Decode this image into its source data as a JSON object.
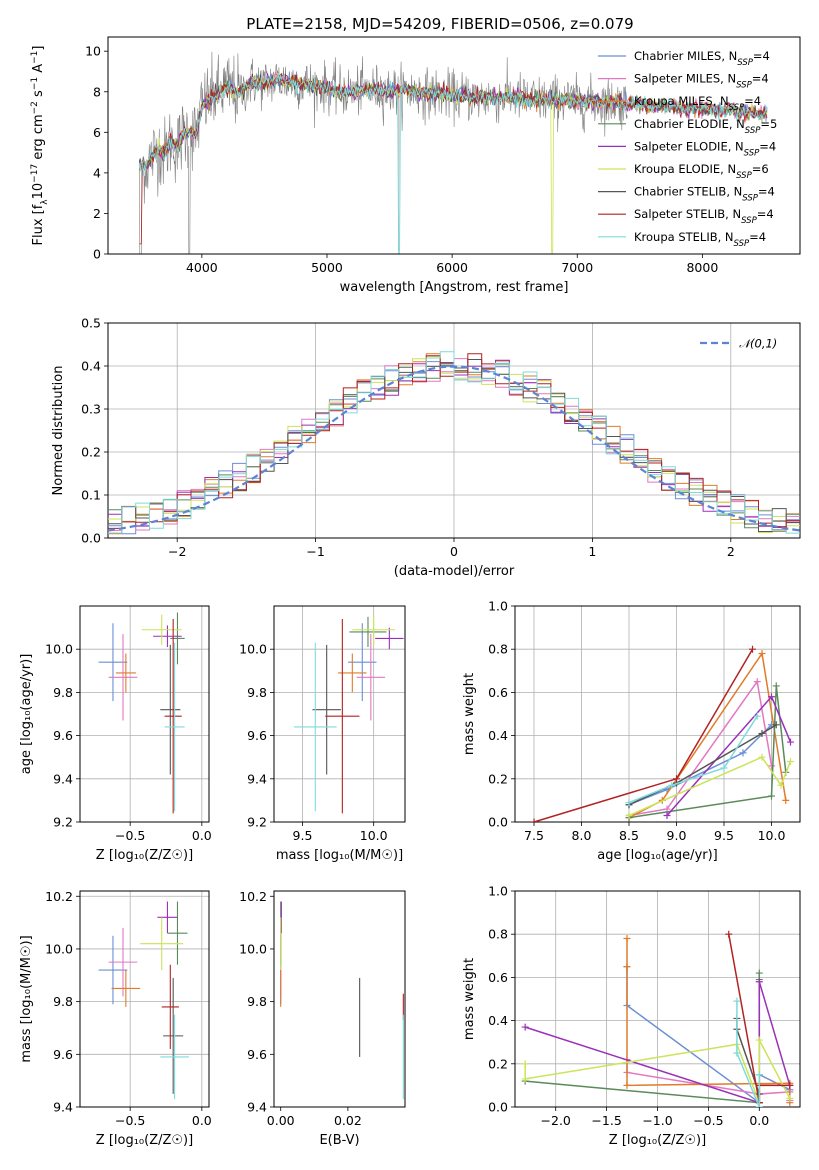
{
  "figure": {
    "title": "PLATE=2158, MJD=54209, FIBERID=0506, z=0.079"
  },
  "colors": {
    "data": "#7f7f7f",
    "Chabrier MILES": "#6b8ed6",
    "Salpeter MILES": "#e377c2",
    "Kroupa MILES": "#e07b2a",
    "Chabrier ELODIE": "#5a8a5a",
    "Salpeter ELODIE": "#9b30b8",
    "Kroupa ELODIE": "#cce35a",
    "Chabrier STELIB": "#555555",
    "Salpeter STELIB": "#b22222",
    "Kroupa STELIB": "#7fdada",
    "gaussian": "#5b84d4",
    "grid": "#b0b0b0"
  },
  "chart_data": [
    {
      "id": "spectrum",
      "type": "line",
      "title": "PLATE=2158, MJD=54209, FIBERID=0506, z=0.079",
      "xlabel": "wavelength [Angstrom, rest frame]",
      "ylabel_parts": [
        "Flux [f",
        "λ",
        "10",
        "−17",
        " erg cm",
        "−2",
        " s",
        "−1",
        " A",
        "−1",
        "]"
      ],
      "xlim": [
        3250,
        8780
      ],
      "ylim": [
        0,
        10.7
      ],
      "xticks": [
        4000,
        5000,
        6000,
        7000,
        8000
      ],
      "yticks": [
        0,
        2,
        4,
        6,
        8,
        10
      ],
      "grid": false,
      "legend_position": "top-right",
      "legend": [
        {
          "name": "Chabrier MILES",
          "nssp": "4"
        },
        {
          "name": "Salpeter MILES",
          "nssp": "4"
        },
        {
          "name": "Kroupa MILES",
          "nssp": "4"
        },
        {
          "name": "Chabrier ELODIE",
          "nssp": "5"
        },
        {
          "name": "Salpeter ELODIE",
          "nssp": "4"
        },
        {
          "name": "Kroupa ELODIE",
          "nssp": "6"
        },
        {
          "name": "Chabrier STELIB",
          "nssp": "4"
        },
        {
          "name": "Salpeter STELIB",
          "nssp": "4"
        },
        {
          "name": "Kroupa STELIB",
          "nssp": "4"
        }
      ],
      "legend_nssp_label": "N",
      "legend_nssp_sub": "SSP",
      "continuum": {
        "x": [
          3500,
          3550,
          3600,
          3650,
          3700,
          3750,
          3800,
          3850,
          3900,
          3950,
          4000,
          4050,
          4100,
          4200,
          4300,
          4400,
          4500,
          4600,
          4700,
          4800,
          4900,
          5000,
          5100,
          5200,
          5300,
          5400,
          5500,
          5600,
          5700,
          5800,
          5900,
          6000,
          6100,
          6200,
          6300,
          6400,
          6500,
          6600,
          6700,
          6800,
          6900,
          7000,
          7100,
          7200,
          7300,
          7400,
          7500,
          7600,
          7700,
          7800,
          7900,
          8000,
          8100,
          8200,
          8300,
          8400,
          8500
        ],
        "y": [
          4.5,
          4.3,
          4.8,
          5.2,
          4.9,
          5.6,
          5.2,
          5.9,
          6.1,
          5.8,
          7.3,
          7.6,
          7.8,
          8.2,
          7.9,
          8.5,
          8.4,
          8.6,
          8.5,
          8.4,
          8.3,
          8.2,
          8.0,
          8.0,
          8.1,
          8.1,
          8.0,
          8.1,
          8.0,
          7.9,
          7.9,
          7.8,
          7.8,
          7.7,
          7.7,
          7.7,
          7.8,
          7.6,
          7.6,
          7.6,
          7.6,
          7.5,
          7.5,
          7.5,
          7.5,
          7.4,
          7.4,
          7.3,
          7.3,
          7.2,
          7.2,
          7.2,
          7.1,
          7.1,
          7.0,
          7.0,
          6.9
        ]
      },
      "data_xrange": [
        3500,
        7400
      ],
      "model_xrange": [
        3500,
        8520
      ]
    },
    {
      "id": "residuals",
      "type": "histogram",
      "xlabel": "(data-model)/error",
      "ylabel": "Normed distribution",
      "xlim": [
        -2.5,
        2.5
      ],
      "ylim": [
        0,
        0.5
      ],
      "xticks": [
        -2,
        -1,
        0,
        1,
        2
      ],
      "xtick_labels": [
        "−2",
        "−1",
        "0",
        "1",
        "2"
      ],
      "yticks": [
        0.0,
        0.1,
        0.2,
        0.3,
        0.4,
        0.5
      ],
      "ytick_labels": [
        "0.0",
        "0.1",
        "0.2",
        "0.3",
        "0.4",
        "0.5"
      ],
      "grid": true,
      "legend_position": "top-right",
      "gaussian_label": "𝒩(0,1)",
      "bin_width": 0.1
    },
    {
      "id": "age-vs-Z",
      "type": "errorbar",
      "xlabel": "Z [log₁₀(Z/Z☉)]",
      "ylabel": "age  [log₁₀(age/yr)]",
      "xlim": [
        -0.85,
        0.05
      ],
      "ylim": [
        9.2,
        10.2
      ],
      "xticks": [
        -0.5,
        0.0
      ],
      "xtick_labels": [
        "−0.5",
        "0.0"
      ],
      "yticks": [
        9.2,
        9.4,
        9.6,
        9.8,
        10.0
      ],
      "ytick_labels": [
        "9.2",
        "9.4",
        "9.6",
        "9.8",
        "10.0"
      ],
      "grid": true,
      "points": [
        {
          "series": "Chabrier MILES",
          "x": -0.62,
          "xerr": 0.1,
          "y": 9.94,
          "yerr": 0.18
        },
        {
          "series": "Salpeter MILES",
          "x": -0.55,
          "xerr": 0.1,
          "y": 9.87,
          "yerr": 0.2
        },
        {
          "series": "Kroupa MILES",
          "x": -0.53,
          "xerr": 0.07,
          "y": 9.89,
          "yerr": 0.09
        },
        {
          "series": "Chabrier ELODIE",
          "x": -0.17,
          "xerr": 0.05,
          "y": 10.05,
          "yerr": 0.12
        },
        {
          "series": "Salpeter ELODIE",
          "x": -0.24,
          "xerr": 0.1,
          "y": 10.06,
          "yerr": 0.05
        },
        {
          "series": "Kroupa ELODIE",
          "x": -0.28,
          "xerr": 0.14,
          "y": 10.09,
          "yerr": 0.07
        },
        {
          "series": "Chabrier STELIB",
          "x": -0.22,
          "xerr": 0.07,
          "y": 9.72,
          "yerr": 0.3
        },
        {
          "series": "Salpeter STELIB",
          "x": -0.2,
          "xerr": 0.06,
          "y": 9.69,
          "yerr": 0.45
        },
        {
          "series": "Kroupa STELIB",
          "x": -0.19,
          "xerr": 0.07,
          "y": 9.64,
          "yerr": 0.39
        }
      ]
    },
    {
      "id": "age-vs-mass",
      "type": "errorbar",
      "xlabel": "mass [log₁₀(M/M☉)]",
      "ylabel": "",
      "xlim": [
        9.3,
        10.22
      ],
      "ylim": [
        9.2,
        10.2
      ],
      "xticks": [
        9.5,
        10.0
      ],
      "xtick_labels": [
        "9.5",
        "10.0"
      ],
      "yticks": [
        9.2,
        9.4,
        9.6,
        9.8,
        10.0
      ],
      "ytick_labels": [
        "9.2",
        "9.4",
        "9.6",
        "9.8",
        "10.0"
      ],
      "grid": true,
      "points": [
        {
          "series": "Chabrier MILES",
          "x": 9.92,
          "xerr": 0.1,
          "y": 9.94,
          "yerr": 0.18
        },
        {
          "series": "Salpeter MILES",
          "x": 9.98,
          "xerr": 0.1,
          "y": 9.87,
          "yerr": 0.2
        },
        {
          "series": "Kroupa MILES",
          "x": 9.85,
          "xerr": 0.1,
          "y": 9.89,
          "yerr": 0.09
        },
        {
          "series": "Chabrier ELODIE",
          "x": 9.96,
          "xerr": 0.13,
          "y": 10.08,
          "yerr": 0.07
        },
        {
          "series": "Salpeter ELODIE",
          "x": 10.11,
          "xerr": 0.1,
          "y": 10.05,
          "yerr": 0.05
        },
        {
          "series": "Kroupa ELODIE",
          "x": 10.0,
          "xerr": 0.15,
          "y": 10.09,
          "yerr": 0.07
        },
        {
          "series": "Chabrier STELIB",
          "x": 9.67,
          "xerr": 0.1,
          "y": 9.72,
          "yerr": 0.3
        },
        {
          "series": "Salpeter STELIB",
          "x": 9.78,
          "xerr": 0.12,
          "y": 9.69,
          "yerr": 0.45
        },
        {
          "series": "Kroupa STELIB",
          "x": 9.59,
          "xerr": 0.15,
          "y": 9.64,
          "yerr": 0.39
        }
      ]
    },
    {
      "id": "weight-vs-age",
      "type": "line",
      "xlabel": "age  [log₁₀(age/yr)]",
      "ylabel": "mass weight",
      "xlim": [
        7.3,
        10.3
      ],
      "ylim": [
        0,
        1.0
      ],
      "xticks": [
        7.5,
        8.0,
        8.5,
        9.0,
        9.5,
        10.0
      ],
      "xtick_labels": [
        "7.5",
        "8.0",
        "8.5",
        "9.0",
        "9.5",
        "10.0"
      ],
      "yticks": [
        0,
        0.2,
        0.4,
        0.6,
        0.8,
        1.0
      ],
      "ytick_labels": [
        "0.0",
        "0.2",
        "0.4",
        "0.6",
        "0.8",
        "1.0"
      ],
      "grid": true,
      "series": [
        {
          "name": "Chabrier MILES",
          "x": [
            8.5,
            8.9,
            9.7,
            10.0
          ],
          "y": [
            0.08,
            0.15,
            0.32,
            0.45
          ]
        },
        {
          "name": "Salpeter MILES",
          "x": [
            8.5,
            8.9,
            9.85,
            10.0
          ],
          "y": [
            0.03,
            0.06,
            0.65,
            0.26
          ]
        },
        {
          "name": "Kroupa MILES",
          "x": [
            8.5,
            8.85,
            9.9,
            10.15
          ],
          "y": [
            0.02,
            0.1,
            0.78,
            0.1
          ]
        },
        {
          "name": "Chabrier ELODIE",
          "x": [
            8.5,
            10.0,
            10.05,
            10.15
          ],
          "y": [
            0.02,
            0.12,
            0.63,
            0.23
          ]
        },
        {
          "name": "Salpeter ELODIE",
          "x": [
            8.9,
            10.0,
            10.2
          ],
          "y": [
            0.03,
            0.58,
            0.37
          ]
        },
        {
          "name": "Kroupa ELODIE",
          "x": [
            8.5,
            9.9,
            10.1,
            10.2
          ],
          "y": [
            0.03,
            0.3,
            0.17,
            0.28
          ]
        },
        {
          "name": "Chabrier STELIB",
          "x": [
            8.5,
            9.0,
            9.9,
            10.05
          ],
          "y": [
            0.08,
            0.18,
            0.41,
            0.45
          ]
        },
        {
          "name": "Salpeter STELIB",
          "x": [
            7.5,
            9.0,
            9.8
          ],
          "y": [
            0.0,
            0.2,
            0.8
          ]
        },
        {
          "name": "Kroupa STELIB",
          "x": [
            8.5,
            8.95,
            9.5,
            9.85
          ],
          "y": [
            0.09,
            0.17,
            0.25,
            0.49
          ]
        }
      ]
    },
    {
      "id": "mass-vs-Z",
      "type": "errorbar",
      "xlabel": "Z [log₁₀(Z/Z☉)]",
      "ylabel": "mass [log₁₀(M/M☉)]",
      "xlim": [
        -0.85,
        0.05
      ],
      "ylim": [
        9.4,
        10.22
      ],
      "xticks": [
        -0.5,
        0.0
      ],
      "xtick_labels": [
        "−0.5",
        "0.0"
      ],
      "yticks": [
        9.4,
        9.6,
        9.8,
        10.0,
        10.2
      ],
      "ytick_labels": [
        "9.4",
        "9.6",
        "9.8",
        "10.0",
        "10.2"
      ],
      "grid": true,
      "points": [
        {
          "series": "Chabrier MILES",
          "x": -0.62,
          "xerr": 0.1,
          "y": 9.92,
          "yerr": 0.13
        },
        {
          "series": "Salpeter MILES",
          "x": -0.55,
          "xerr": 0.1,
          "y": 9.95,
          "yerr": 0.13
        },
        {
          "series": "Kroupa MILES",
          "x": -0.53,
          "xerr": 0.1,
          "y": 9.85,
          "yerr": 0.07
        },
        {
          "series": "Chabrier ELODIE",
          "x": -0.17,
          "xerr": 0.07,
          "y": 10.06,
          "yerr": 0.12
        },
        {
          "series": "Salpeter ELODIE",
          "x": -0.24,
          "xerr": 0.07,
          "y": 10.12,
          "yerr": 0.06
        },
        {
          "series": "Kroupa ELODIE",
          "x": -0.28,
          "xerr": 0.15,
          "y": 10.02,
          "yerr": 0.1
        },
        {
          "series": "Chabrier STELIB",
          "x": -0.2,
          "xerr": 0.07,
          "y": 9.67,
          "yerr": 0.22
        },
        {
          "series": "Salpeter STELIB",
          "x": -0.22,
          "xerr": 0.06,
          "y": 9.78,
          "yerr": 0.16
        },
        {
          "series": "Kroupa STELIB",
          "x": -0.19,
          "xerr": 0.1,
          "y": 9.59,
          "yerr": 0.16
        }
      ]
    },
    {
      "id": "mass-vs-EBV",
      "type": "errorbar",
      "xlabel": "E(B-V)",
      "ylabel": "",
      "xlim": [
        -0.002,
        0.037
      ],
      "ylim": [
        9.4,
        10.22
      ],
      "xticks": [
        0.0,
        0.02
      ],
      "xtick_labels": [
        "0.00",
        "0.02"
      ],
      "yticks": [
        9.4,
        9.6,
        9.8,
        10.0,
        10.2
      ],
      "ytick_labels": [
        "9.4",
        "9.6",
        "9.8",
        "10.0",
        "10.2"
      ],
      "grid": false,
      "points": [
        {
          "series": "Chabrier MILES",
          "x": 0.0,
          "xerr": 0,
          "y": 9.92,
          "yerr": 0.13
        },
        {
          "series": "Salpeter MILES",
          "x": 0.0,
          "xerr": 0,
          "y": 9.95,
          "yerr": 0.13
        },
        {
          "series": "Kroupa MILES",
          "x": 0.0,
          "xerr": 0,
          "y": 9.85,
          "yerr": 0.07
        },
        {
          "series": "Chabrier ELODIE",
          "x": 0.0,
          "xerr": 0,
          "y": 10.06,
          "yerr": 0.12
        },
        {
          "series": "Salpeter ELODIE",
          "x": 0.0002,
          "xerr": 0,
          "y": 10.12,
          "yerr": 0.06
        },
        {
          "series": "Kroupa ELODIE",
          "x": 0.0,
          "xerr": 0,
          "y": 10.02,
          "yerr": 0.1
        },
        {
          "series": "Chabrier STELIB",
          "x": 0.0235,
          "xerr": 0,
          "y": 9.74,
          "yerr": 0.15
        },
        {
          "series": "Salpeter STELIB",
          "x": 0.0365,
          "xerr": 0,
          "y": 9.78,
          "yerr": 0.05
        },
        {
          "series": "Kroupa STELIB",
          "x": 0.0365,
          "xerr": 0,
          "y": 9.59,
          "yerr": 0.16
        }
      ]
    },
    {
      "id": "weight-vs-Z",
      "type": "line",
      "xlabel": "Z [log₁₀(Z/Z☉)]",
      "ylabel": "mass weight",
      "xlim": [
        -2.4,
        0.4
      ],
      "ylim": [
        0,
        1.0
      ],
      "xticks": [
        -2.0,
        -1.5,
        -1.0,
        -0.5,
        0.0
      ],
      "xtick_labels": [
        "−2.0",
        "−1.5",
        "−1.0",
        "−0.5",
        "0.0"
      ],
      "yticks": [
        0,
        0.2,
        0.4,
        0.6,
        0.8,
        1.0
      ],
      "ytick_labels": [
        "0.0",
        "0.2",
        "0.4",
        "0.6",
        "0.8",
        "1.0"
      ],
      "grid": true,
      "series": [
        {
          "name": "Chabrier MILES",
          "x": [
            -1.3,
            -1.3,
            0.0,
            0.0,
            0.3
          ],
          "y": [
            0.65,
            0.47,
            0.02,
            0.15,
            0.08
          ]
        },
        {
          "name": "Salpeter MILES",
          "x": [
            -1.3,
            -1.3,
            0.0,
            0.3,
            0.3
          ],
          "y": [
            0.22,
            0.16,
            0.06,
            0.07,
            0.03
          ]
        },
        {
          "name": "Kroupa MILES",
          "x": [
            -1.3,
            -1.3,
            -1.3,
            0.3,
            0.3
          ],
          "y": [
            0.78,
            0.65,
            0.1,
            0.11,
            0.02
          ]
        },
        {
          "name": "Chabrier ELODIE",
          "x": [
            -2.3,
            0.0,
            0.0,
            0.0
          ],
          "y": [
            0.12,
            0.02,
            0.62,
            0.59
          ]
        },
        {
          "name": "Salpeter ELODIE",
          "x": [
            -2.3,
            0.0,
            0.0,
            0.3
          ],
          "y": [
            0.37,
            0.02,
            0.58,
            0.1
          ]
        },
        {
          "name": "Kroupa ELODIE",
          "x": [
            -2.3,
            -2.3,
            -0.22,
            0.0,
            0.0,
            0.3
          ],
          "y": [
            0.2,
            0.13,
            0.29,
            0.02,
            0.31,
            0.04
          ]
        },
        {
          "name": "Chabrier STELIB",
          "x": [
            -0.22,
            -0.22,
            0.0,
            0.0
          ],
          "y": [
            0.41,
            0.36,
            0.06,
            0.02
          ]
        },
        {
          "name": "Salpeter STELIB",
          "x": [
            -0.3,
            0.0,
            0.0,
            0.3
          ],
          "y": [
            0.8,
            0.02,
            0.1,
            0.1
          ]
        },
        {
          "name": "Kroupa STELIB",
          "x": [
            -0.22,
            -0.22,
            0.0,
            0.0
          ],
          "y": [
            0.49,
            0.25,
            0.0,
            0.15
          ]
        }
      ]
    }
  ]
}
